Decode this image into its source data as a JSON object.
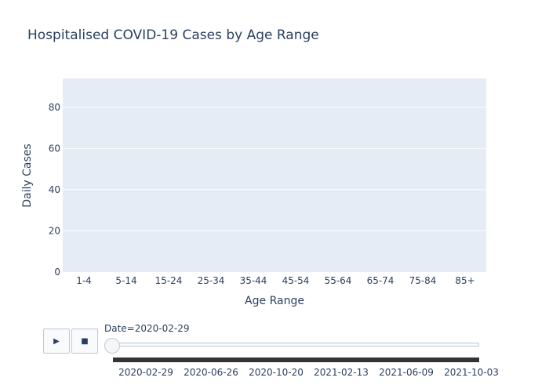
{
  "chart_data": {
    "type": "bar",
    "title": "Hospitalised COVID-19 Cases by Age Range",
    "xlabel": "Age Range",
    "ylabel": "Daily Cases",
    "categories": [
      "1-4",
      "5-14",
      "15-24",
      "25-34",
      "35-44",
      "45-54",
      "55-64",
      "65-74",
      "75-84",
      "85+"
    ],
    "values": [
      0,
      0,
      0,
      0,
      0,
      0,
      0,
      0,
      0,
      0
    ],
    "ylim": [
      0,
      94
    ],
    "yticks": [
      0,
      20,
      40,
      60,
      80
    ],
    "grid": true
  },
  "animation": {
    "play_icon": "▶",
    "stop_icon": "■",
    "current_label": "Date=2020-02-29",
    "slider_ticks": [
      "2020-02-29",
      "2020-06-26",
      "2020-10-20",
      "2021-02-13",
      "2021-06-09",
      "2021-10-03"
    ],
    "current_index": 0
  },
  "colors": {
    "plot_bg": "#e5ecf6",
    "grid": "#ffffff",
    "text": "#2a3f5f",
    "bar": "#636efa"
  }
}
